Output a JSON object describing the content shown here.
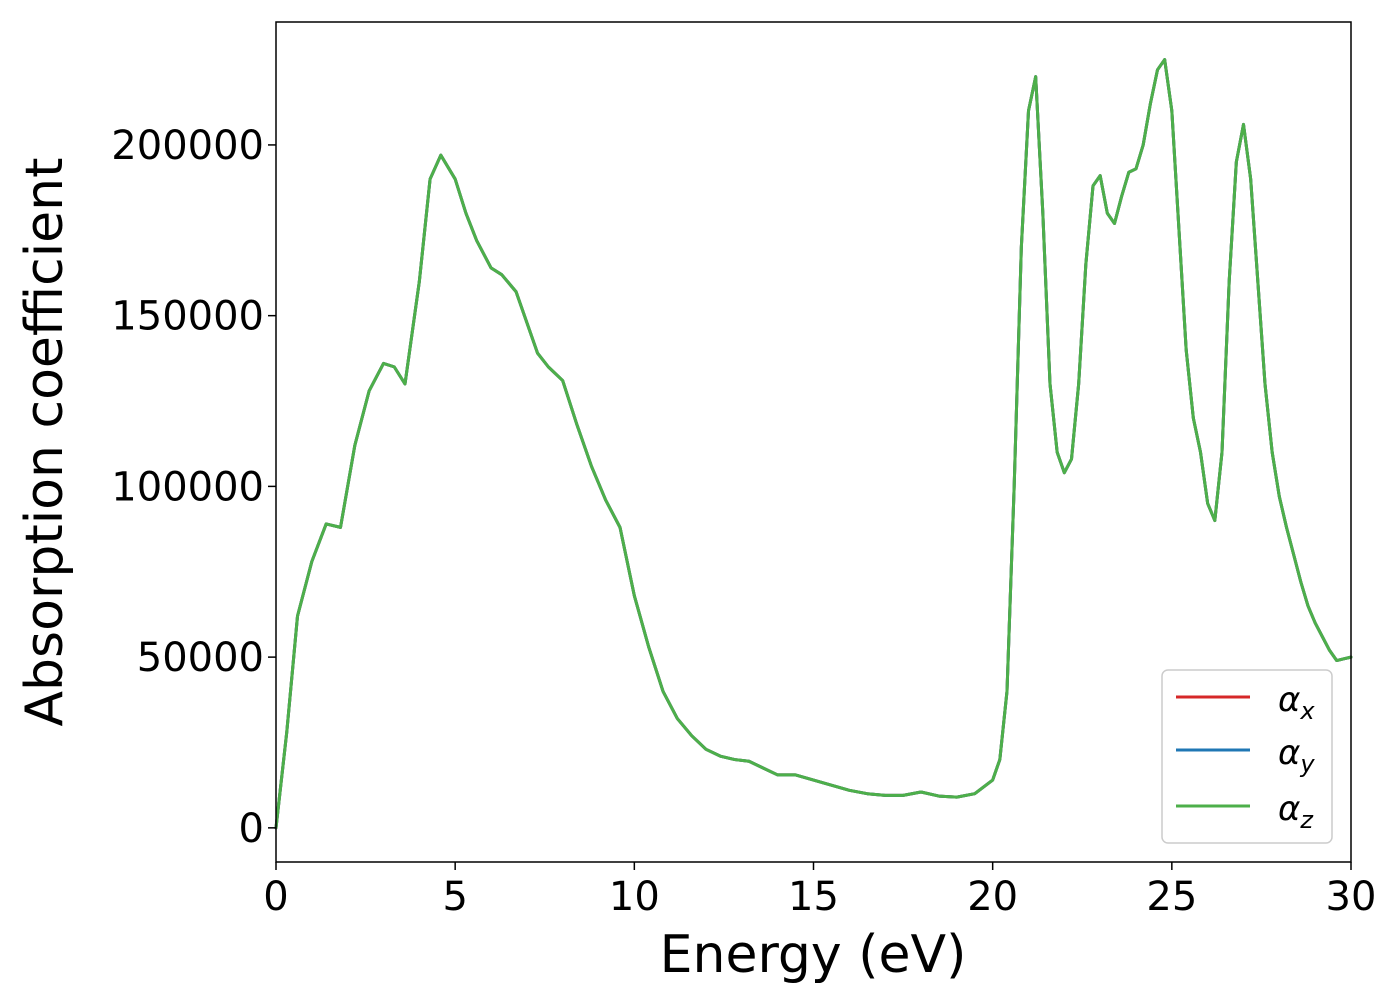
{
  "chart_data": {
    "type": "line",
    "xlabel": "Energy (eV)",
    "ylabel": "Absorption coefficient",
    "xlim": [
      0,
      30
    ],
    "ylim": [
      -10000,
      236000
    ],
    "grid": false,
    "legend_position": "bottom-right",
    "x_ticks": [
      0,
      5,
      10,
      15,
      20,
      25,
      30
    ],
    "x_tick_labels": [
      "0",
      "5",
      "10",
      "15",
      "20",
      "25",
      "30"
    ],
    "y_ticks": [
      0,
      50000,
      100000,
      150000,
      200000
    ],
    "y_tick_labels": [
      "0",
      "50000",
      "100000",
      "150000",
      "200000"
    ],
    "x": [
      0,
      0.3,
      0.6,
      1.0,
      1.4,
      1.8,
      2.2,
      2.6,
      3.0,
      3.3,
      3.6,
      4.0,
      4.3,
      4.6,
      5.0,
      5.3,
      5.6,
      6.0,
      6.3,
      6.7,
      7.0,
      7.3,
      7.6,
      8.0,
      8.4,
      8.8,
      9.2,
      9.6,
      10.0,
      10.4,
      10.8,
      11.2,
      11.6,
      12.0,
      12.4,
      12.8,
      13.2,
      13.6,
      14.0,
      14.5,
      15.0,
      15.5,
      16.0,
      16.5,
      17.0,
      17.5,
      18.0,
      18.5,
      19.0,
      19.5,
      20.0,
      20.2,
      20.4,
      20.6,
      20.8,
      21.0,
      21.2,
      21.4,
      21.6,
      21.8,
      22.0,
      22.2,
      22.4,
      22.6,
      22.8,
      23.0,
      23.2,
      23.4,
      23.6,
      23.8,
      24.0,
      24.2,
      24.4,
      24.6,
      24.8,
      25.0,
      25.2,
      25.4,
      25.6,
      25.8,
      26.0,
      26.2,
      26.4,
      26.6,
      26.8,
      27.0,
      27.2,
      27.4,
      27.6,
      27.8,
      28.0,
      28.2,
      28.4,
      28.6,
      28.8,
      29.0,
      29.2,
      29.4,
      29.6,
      29.8,
      30.0
    ],
    "series": [
      {
        "name": "αx",
        "color": "#d62728",
        "values": [
          0,
          28000,
          62000,
          78000,
          89000,
          88000,
          112000,
          128000,
          136000,
          135000,
          130000,
          160000,
          190000,
          197000,
          190000,
          180000,
          172000,
          164000,
          162000,
          157000,
          148000,
          139000,
          135000,
          131000,
          118000,
          106000,
          96000,
          88000,
          68000,
          53000,
          40000,
          32000,
          27000,
          23000,
          21000,
          20000,
          19500,
          17500,
          15500,
          15500,
          14000,
          12500,
          11000,
          10000,
          9500,
          9500,
          10500,
          9300,
          9000,
          10000,
          14000,
          20000,
          40000,
          100000,
          170000,
          210000,
          220000,
          180000,
          130000,
          110000,
          104000,
          108000,
          130000,
          165000,
          188000,
          191000,
          180000,
          177000,
          185000,
          192000,
          193000,
          200000,
          212000,
          222000,
          225000,
          210000,
          175000,
          140000,
          120000,
          110000,
          95000,
          90000,
          110000,
          160000,
          195000,
          206000,
          190000,
          160000,
          130000,
          110000,
          97000,
          88000,
          80000,
          72000,
          65000,
          60000,
          56000,
          52000,
          49000,
          49500,
          50000
        ]
      },
      {
        "name": "αy",
        "color": "#1f77b4",
        "values": [
          0,
          28000,
          62000,
          78000,
          89000,
          88000,
          112000,
          128000,
          136000,
          135000,
          130000,
          160000,
          190000,
          197000,
          190000,
          180000,
          172000,
          164000,
          162000,
          157000,
          148000,
          139000,
          135000,
          131000,
          118000,
          106000,
          96000,
          88000,
          68000,
          53000,
          40000,
          32000,
          27000,
          23000,
          21000,
          20000,
          19500,
          17500,
          15500,
          15500,
          14000,
          12500,
          11000,
          10000,
          9500,
          9500,
          10500,
          9300,
          9000,
          10000,
          14000,
          20000,
          40000,
          100000,
          170000,
          210000,
          220000,
          180000,
          130000,
          110000,
          104000,
          108000,
          130000,
          165000,
          188000,
          191000,
          180000,
          177000,
          185000,
          192000,
          193000,
          200000,
          212000,
          222000,
          225000,
          210000,
          175000,
          140000,
          120000,
          110000,
          95000,
          90000,
          110000,
          160000,
          195000,
          206000,
          190000,
          160000,
          130000,
          110000,
          97000,
          88000,
          80000,
          72000,
          65000,
          60000,
          56000,
          52000,
          49000,
          49500,
          50000
        ]
      },
      {
        "name": "αz",
        "color": "#4daf4a",
        "values": [
          0,
          28000,
          62000,
          78000,
          89000,
          88000,
          112000,
          128000,
          136000,
          135000,
          130000,
          160000,
          190000,
          197000,
          190000,
          180000,
          172000,
          164000,
          162000,
          157000,
          148000,
          139000,
          135000,
          131000,
          118000,
          106000,
          96000,
          88000,
          68000,
          53000,
          40000,
          32000,
          27000,
          23000,
          21000,
          20000,
          19500,
          17500,
          15500,
          15500,
          14000,
          12500,
          11000,
          10000,
          9500,
          9500,
          10500,
          9300,
          9000,
          10000,
          14000,
          20000,
          40000,
          100000,
          170000,
          210000,
          220000,
          180000,
          130000,
          110000,
          104000,
          108000,
          130000,
          165000,
          188000,
          191000,
          180000,
          177000,
          185000,
          192000,
          193000,
          200000,
          212000,
          222000,
          225000,
          210000,
          175000,
          140000,
          120000,
          110000,
          95000,
          90000,
          110000,
          160000,
          195000,
          206000,
          190000,
          160000,
          130000,
          110000,
          97000,
          88000,
          80000,
          72000,
          65000,
          60000,
          56000,
          52000,
          49000,
          49500,
          50000
        ]
      }
    ]
  },
  "legend": {
    "items": [
      {
        "symbol": "α",
        "sub": "x",
        "color": "#d62728"
      },
      {
        "symbol": "α",
        "sub": "y",
        "color": "#1f77b4"
      },
      {
        "symbol": "α",
        "sub": "z",
        "color": "#4daf4a"
      }
    ]
  }
}
